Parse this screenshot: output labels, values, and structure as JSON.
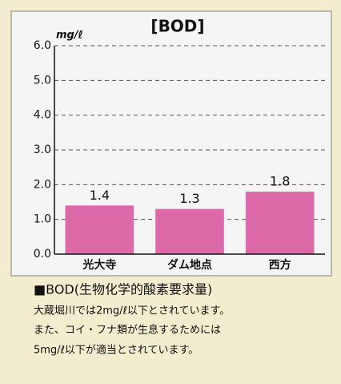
{
  "chart_data": {
    "type": "bar",
    "title": "[BOD]",
    "y_axis_label": "mg/ℓ",
    "categories": [
      "光大寺",
      "ダム地点",
      "西方"
    ],
    "values": [
      1.4,
      1.3,
      1.8
    ],
    "color": "#dd6aa8",
    "ylim": [
      0,
      6
    ],
    "yticks": [
      {
        "value": 0,
        "label": "0.0"
      },
      {
        "value": 1,
        "label": "1.0"
      },
      {
        "value": 2,
        "label": "2.0"
      },
      {
        "value": 3,
        "label": "3.0"
      },
      {
        "value": 4,
        "label": "4.0"
      },
      {
        "value": 5,
        "label": "5.0"
      },
      {
        "value": 6,
        "label": "6.0"
      }
    ],
    "grid": true,
    "caption": [
      "■BOD(生物化学的酸素要求量)",
      "大蔵堀川では2mg/ℓ以下とされています。",
      "また、コイ・フナ類が生息するためには",
      "5mg/ℓ以下が適当とされています。"
    ]
  }
}
